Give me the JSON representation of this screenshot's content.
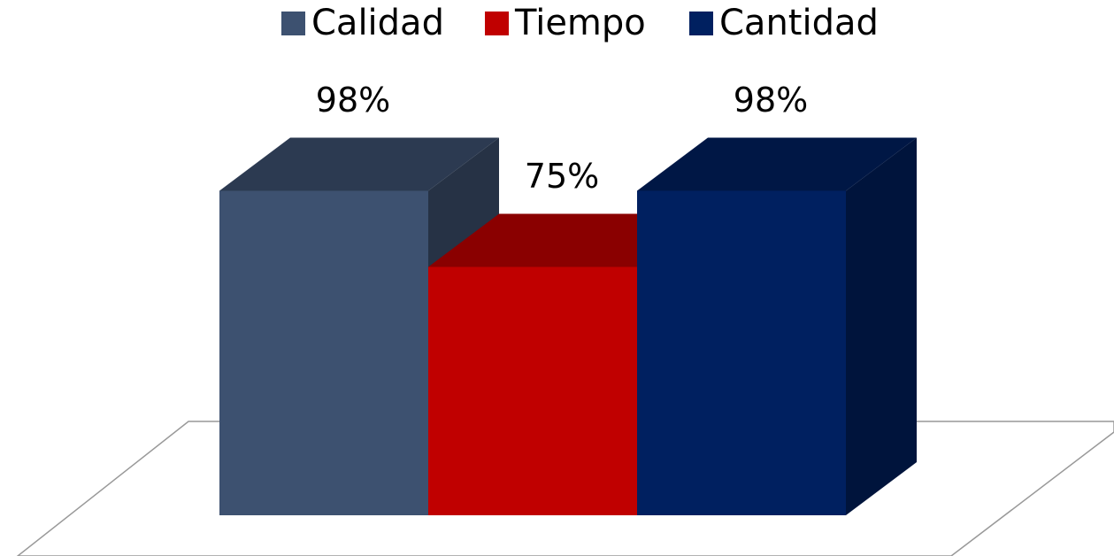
{
  "chart_data": {
    "type": "bar3d",
    "categories": [
      null
    ],
    "series": [
      {
        "name": "Calidad",
        "color": "#3d5170",
        "values": [
          98
        ],
        "value_labels": [
          "98%"
        ]
      },
      {
        "name": "Tiempo",
        "color": "#c00000",
        "values": [
          75
        ],
        "value_labels": [
          "75%"
        ]
      },
      {
        "name": "Cantidad",
        "color": "#002060",
        "values": [
          98
        ],
        "value_labels": [
          "98%"
        ]
      }
    ],
    "legend": "top"
  }
}
